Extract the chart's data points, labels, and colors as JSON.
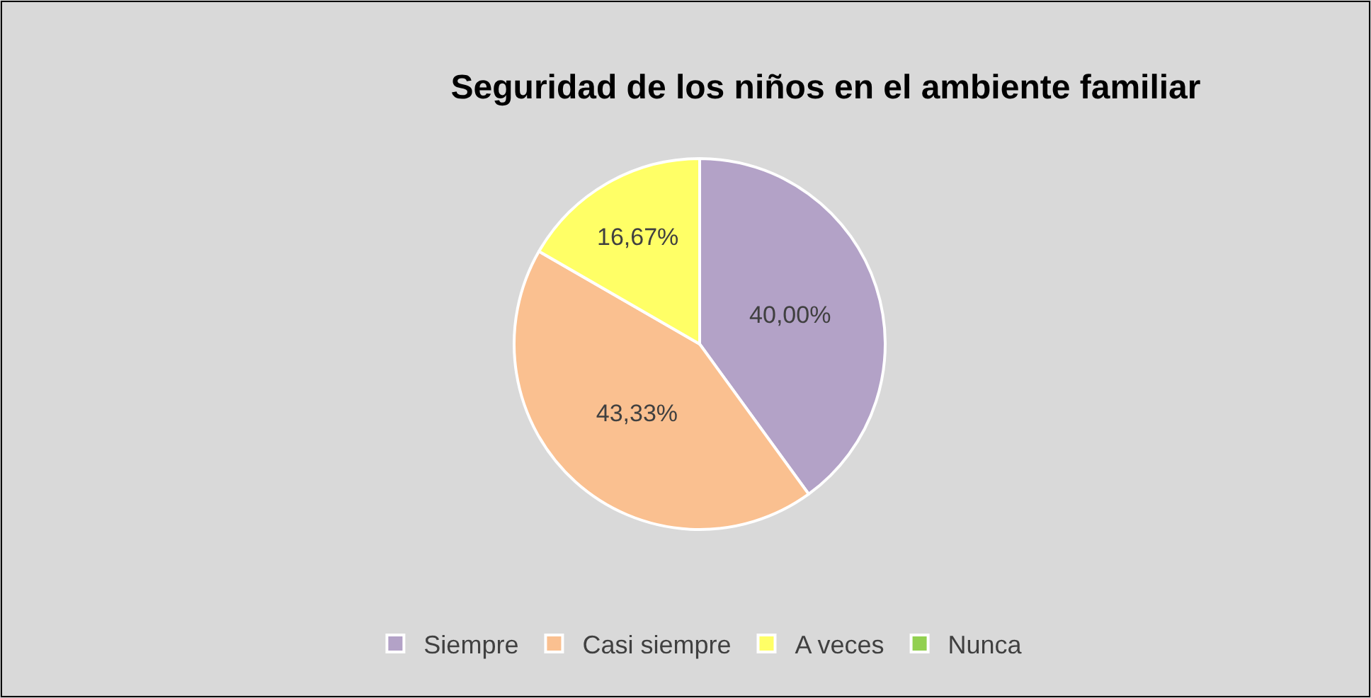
{
  "chart_data": {
    "type": "pie",
    "title": "Seguridad de los niños en el ambiente familiar",
    "categories": [
      "Siempre",
      "Casi siempre",
      "A veces",
      "Nunca"
    ],
    "values": [
      40.0,
      43.33,
      16.67,
      0
    ],
    "value_labels": [
      "40,00%",
      "43,33%",
      "16,67%",
      null
    ],
    "colors": [
      "#b3a2c7",
      "#fac090",
      "#ffff66",
      "#92d050"
    ],
    "legend": "bottom"
  }
}
